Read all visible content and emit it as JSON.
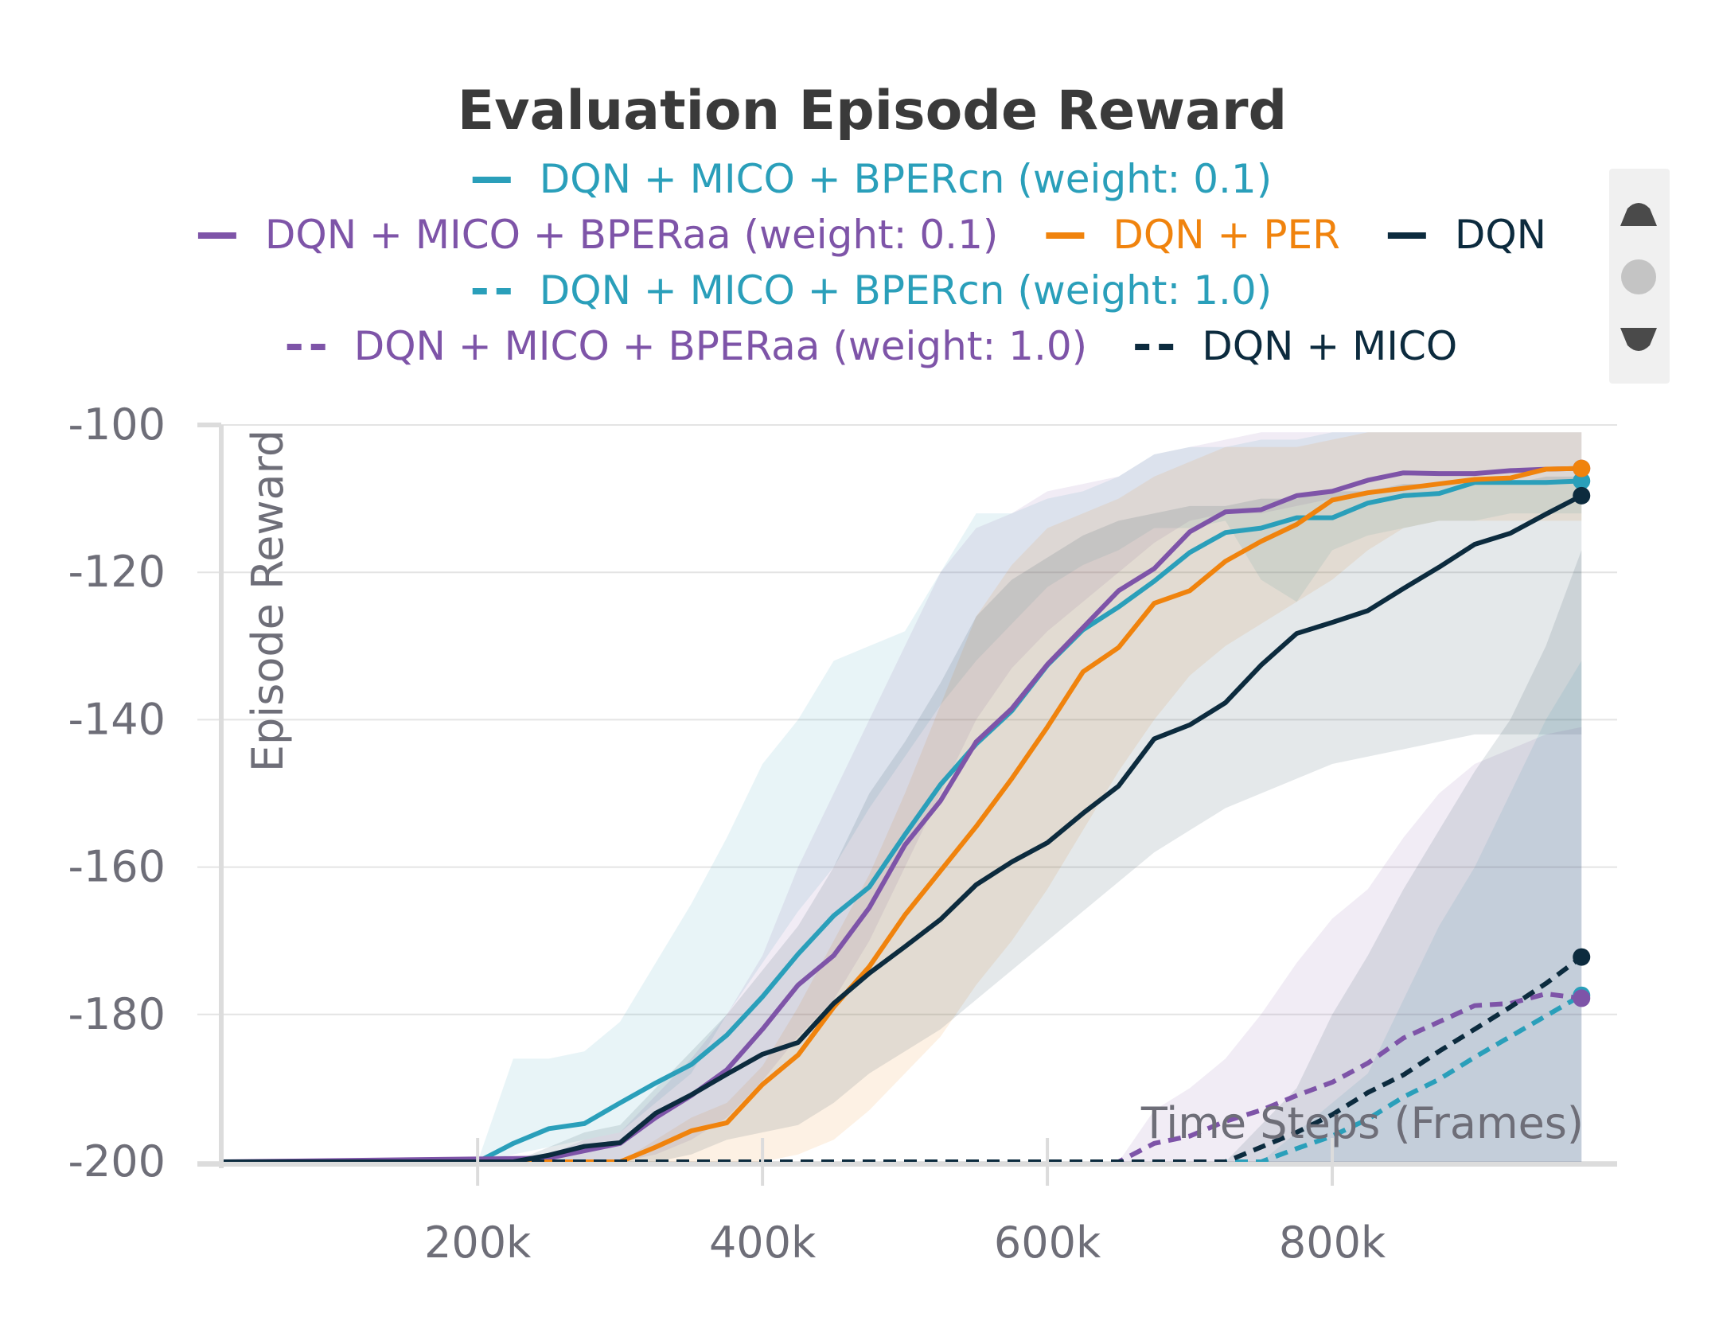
{
  "chart_data": {
    "type": "line",
    "title": "Evaluation Episode Reward",
    "xlabel": "Time Steps (Frames)",
    "ylabel": "Episode Reward",
    "xlim": [
      20000,
      1000000
    ],
    "ylim": [
      -200,
      -100
    ],
    "xticks": [
      200000,
      400000,
      600000,
      800000
    ],
    "xtick_labels": [
      "200k",
      "400k",
      "600k",
      "800k"
    ],
    "yticks": [
      -100,
      -120,
      -140,
      -160,
      -180,
      -200
    ],
    "ytick_labels": [
      "-100",
      "-120",
      "-140",
      "-160",
      "-180",
      "-200"
    ],
    "grid": true,
    "legend_position": "top-center",
    "series": [
      {
        "name": "DQN + MICO + BPERcn (weight: 0.1)",
        "color": "#2a9fba",
        "dash": "solid",
        "x": [
          20000,
          200000,
          225000,
          250000,
          275000,
          300000,
          325000,
          350000,
          375000,
          400000,
          425000,
          450000,
          475000,
          500000,
          525000,
          550000,
          575000,
          600000,
          625000,
          650000,
          675000,
          700000,
          725000,
          750000,
          775000,
          800000,
          825000,
          850000,
          875000,
          900000,
          925000,
          950000,
          975000
        ],
        "y": [
          -200,
          -200,
          -197.5,
          -195.5,
          -194.8,
          -192,
          -189.3,
          -186.8,
          -182.8,
          -177.6,
          -171.8,
          -166.6,
          -162.7,
          -155.6,
          -148.8,
          -143.3,
          -138.8,
          -132.6,
          -127.8,
          -124.7,
          -121.2,
          -117.3,
          -114.6,
          -114.0,
          -112.6,
          -112.6,
          -110.6,
          -109.6,
          -109.3,
          -107.8,
          -107.8,
          -107.8,
          -107.6
        ],
        "band": [
          [
            -200,
            -200
          ],
          [
            -200,
            -200
          ],
          [
            -199,
            -186
          ],
          [
            -198,
            -186
          ],
          [
            -197,
            -185
          ],
          [
            -196,
            -181
          ],
          [
            -192,
            -173
          ],
          [
            -188,
            -165
          ],
          [
            -180,
            -156
          ],
          [
            -173,
            -146
          ],
          [
            -166,
            -140
          ],
          [
            -160,
            -132
          ],
          [
            -152,
            -130
          ],
          [
            -145,
            -128
          ],
          [
            -138,
            -120
          ],
          [
            -132,
            -112
          ],
          [
            -127,
            -112
          ],
          [
            -122,
            -110
          ],
          [
            -119,
            -109
          ],
          [
            -117,
            -107
          ],
          [
            -114,
            -104
          ],
          [
            -114,
            -103
          ],
          [
            -113,
            -103
          ],
          [
            -121,
            -102
          ],
          [
            -124,
            -102
          ],
          [
            -117,
            -101
          ],
          [
            -115,
            -101
          ],
          [
            -114,
            -101
          ],
          [
            -113,
            -101
          ],
          [
            -113,
            -101
          ],
          [
            -112,
            -101
          ],
          [
            -112,
            -101
          ],
          [
            -112,
            -101
          ]
        ]
      },
      {
        "name": "DQN + MICO + BPERaa (weight: 0.1)",
        "color": "#7e54a8",
        "dash": "solid",
        "x": [
          20000,
          250000,
          275000,
          300000,
          325000,
          350000,
          375000,
          400000,
          425000,
          450000,
          475000,
          500000,
          525000,
          550000,
          575000,
          600000,
          625000,
          650000,
          675000,
          700000,
          725000,
          750000,
          775000,
          800000,
          825000,
          850000,
          875000,
          900000,
          925000,
          950000,
          975000
        ],
        "y": [
          -200,
          -199.5,
          -198.5,
          -197.5,
          -194,
          -191,
          -187.5,
          -182,
          -176,
          -172,
          -165.5,
          -157,
          -151,
          -143,
          -138.5,
          -132.5,
          -127.5,
          -122.5,
          -119.5,
          -114.5,
          -111.8,
          -111.5,
          -109.6,
          -109,
          -107.5,
          -106.5,
          -106.6,
          -106.6,
          -106.2,
          -106,
          -105.9
        ],
        "band": [
          [
            -200,
            -200
          ],
          [
            -200,
            -199
          ],
          [
            -200,
            -197
          ],
          [
            -200,
            -196
          ],
          [
            -199,
            -191
          ],
          [
            -197,
            -186
          ],
          [
            -194,
            -180
          ],
          [
            -189,
            -172
          ],
          [
            -183,
            -160
          ],
          [
            -178,
            -150
          ],
          [
            -170,
            -140
          ],
          [
            -160,
            -130
          ],
          [
            -150,
            -120
          ],
          [
            -140,
            -114
          ],
          [
            -133,
            -112
          ],
          [
            -128,
            -109
          ],
          [
            -124,
            -108
          ],
          [
            -120,
            -107
          ],
          [
            -116,
            -104
          ],
          [
            -113,
            -103
          ],
          [
            -112,
            -102
          ],
          [
            -112,
            -101
          ],
          [
            -111,
            -101
          ],
          [
            -110,
            -101
          ],
          [
            -109,
            -101
          ],
          [
            -109,
            -101
          ],
          [
            -108,
            -101
          ],
          [
            -108,
            -101
          ],
          [
            -108,
            -101
          ],
          [
            -108,
            -101
          ],
          [
            -108,
            -101
          ]
        ]
      },
      {
        "name": "DQN + PER",
        "color": "#f0830d",
        "dash": "solid",
        "x": [
          20000,
          300000,
          325000,
          350000,
          375000,
          400000,
          425000,
          450000,
          475000,
          500000,
          525000,
          550000,
          575000,
          600000,
          625000,
          650000,
          675000,
          700000,
          725000,
          750000,
          775000,
          800000,
          825000,
          850000,
          875000,
          900000,
          925000,
          950000,
          975000
        ],
        "y": [
          -200,
          -200,
          -198,
          -195.8,
          -194.7,
          -189.5,
          -185.5,
          -179,
          -173.5,
          -166.5,
          -160.5,
          -154.5,
          -148,
          -141,
          -133.5,
          -130.2,
          -124.2,
          -122.5,
          -118.5,
          -115.8,
          -113.5,
          -110.2,
          -109.2,
          -108.6,
          -108,
          -107.4,
          -107.2,
          -106,
          -105.9
        ],
        "band": [
          [
            -200,
            -200
          ],
          [
            -200,
            -200
          ],
          [
            -200,
            -197
          ],
          [
            -200,
            -194
          ],
          [
            -200,
            -192
          ],
          [
            -200,
            -187
          ],
          [
            -199,
            -179
          ],
          [
            -197,
            -170
          ],
          [
            -193,
            -161
          ],
          [
            -188,
            -150
          ],
          [
            -183,
            -138
          ],
          [
            -176,
            -126
          ],
          [
            -170,
            -119
          ],
          [
            -163,
            -114
          ],
          [
            -155,
            -112
          ],
          [
            -147,
            -110
          ],
          [
            -140,
            -107
          ],
          [
            -134,
            -105
          ],
          [
            -130,
            -103
          ],
          [
            -127,
            -103
          ],
          [
            -124,
            -103
          ],
          [
            -121,
            -102
          ],
          [
            -117,
            -101
          ],
          [
            -114,
            -101
          ],
          [
            -113,
            -101
          ],
          [
            -113,
            -101
          ],
          [
            -113,
            -101
          ],
          [
            -113,
            -101
          ],
          [
            -113,
            -101
          ]
        ]
      },
      {
        "name": "DQN",
        "color": "#0c2b3e",
        "dash": "solid",
        "x": [
          20000,
          225000,
          250000,
          275000,
          300000,
          325000,
          350000,
          375000,
          400000,
          425000,
          450000,
          475000,
          500000,
          525000,
          550000,
          575000,
          600000,
          625000,
          650000,
          675000,
          700000,
          725000,
          750000,
          775000,
          800000,
          825000,
          850000,
          875000,
          900000,
          925000,
          950000,
          975000
        ],
        "y": [
          -200,
          -200,
          -199.1,
          -197.9,
          -197.4,
          -193.4,
          -190.9,
          -188.1,
          -185.4,
          -183.8,
          -178.5,
          -174.4,
          -170.8,
          -167.1,
          -162.4,
          -159.3,
          -156.7,
          -152.7,
          -149,
          -142.6,
          -140.7,
          -137.7,
          -132.6,
          -128.3,
          -126.8,
          -125.2,
          -122.2,
          -119.3,
          -116.2,
          -114.7,
          -112.1,
          -109.6
        ],
        "band": [
          [
            -200,
            -200
          ],
          [
            -200,
            -200
          ],
          [
            -200,
            -198
          ],
          [
            -200,
            -196
          ],
          [
            -200,
            -195
          ],
          [
            -200,
            -190
          ],
          [
            -199,
            -185
          ],
          [
            -197,
            -180
          ],
          [
            -196,
            -174
          ],
          [
            -195,
            -168
          ],
          [
            -192,
            -160
          ],
          [
            -188,
            -150
          ],
          [
            -185,
            -143
          ],
          [
            -182,
            -135
          ],
          [
            -178,
            -126
          ],
          [
            -174,
            -121
          ],
          [
            -170,
            -118
          ],
          [
            -166,
            -115
          ],
          [
            -162,
            -113
          ],
          [
            -158,
            -112
          ],
          [
            -155,
            -111
          ],
          [
            -152,
            -111
          ],
          [
            -150,
            -110
          ],
          [
            -148,
            -110
          ],
          [
            -146,
            -109
          ],
          [
            -145,
            -109
          ],
          [
            -144,
            -108
          ],
          [
            -143,
            -108
          ],
          [
            -142,
            -108
          ],
          [
            -142,
            -108
          ],
          [
            -142,
            -107
          ],
          [
            -142,
            -107
          ]
        ]
      },
      {
        "name": "DQN + MICO + BPERcn (weight: 1.0)",
        "color": "#2a9fba",
        "dash": "dashed",
        "x": [
          20000,
          750000,
          775000,
          800000,
          825000,
          850000,
          875000,
          900000,
          925000,
          950000,
          975000
        ],
        "y": [
          -200,
          -200,
          -198.2,
          -196.5,
          -194.2,
          -191.2,
          -188.8,
          -185.8,
          -183.0,
          -180.2,
          -177.4
        ],
        "band": [
          [
            -200,
            -200
          ],
          [
            -200,
            -200
          ],
          [
            -200,
            -196
          ],
          [
            -200,
            -192
          ],
          [
            -200,
            -188
          ],
          [
            -200,
            -178
          ],
          [
            -200,
            -168
          ],
          [
            -200,
            -160
          ],
          [
            -200,
            -150
          ],
          [
            -200,
            -140
          ],
          [
            -200,
            -132
          ]
        ]
      },
      {
        "name": "DQN + MICO + BPERaa (weight: 1.0)",
        "color": "#7e54a8",
        "dash": "dashed",
        "x": [
          20000,
          650000,
          675000,
          700000,
          725000,
          750000,
          775000,
          800000,
          825000,
          850000,
          875000,
          900000,
          925000,
          950000,
          975000
        ],
        "y": [
          -200,
          -200,
          -197.5,
          -196.5,
          -194.5,
          -193.0,
          -191.0,
          -189.2,
          -186.6,
          -183.2,
          -181.0,
          -178.8,
          -178.5,
          -177.2,
          -177.8
        ],
        "band": [
          [
            -200,
            -200
          ],
          [
            -200,
            -200
          ],
          [
            -200,
            -193
          ],
          [
            -200,
            -190
          ],
          [
            -200,
            -186
          ],
          [
            -200,
            -180
          ],
          [
            -200,
            -173
          ],
          [
            -200,
            -167
          ],
          [
            -200,
            -163
          ],
          [
            -200,
            -156
          ],
          [
            -200,
            -150
          ],
          [
            -200,
            -146
          ],
          [
            -200,
            -144
          ],
          [
            -200,
            -142
          ],
          [
            -200,
            -141
          ]
        ]
      },
      {
        "name": "DQN + MICO",
        "color": "#0c2b3e",
        "dash": "dashed",
        "x": [
          20000,
          725000,
          750000,
          775000,
          800000,
          825000,
          850000,
          875000,
          900000,
          925000,
          950000,
          975000
        ],
        "y": [
          -200,
          -200,
          -198,
          -196,
          -193.6,
          -190.6,
          -188.2,
          -185,
          -182,
          -179,
          -175.8,
          -172.2
        ],
        "band": [
          [
            -200,
            -200
          ],
          [
            -200,
            -200
          ],
          [
            -200,
            -195
          ],
          [
            -200,
            -190
          ],
          [
            -200,
            -180
          ],
          [
            -200,
            -172
          ],
          [
            -200,
            -163
          ],
          [
            -200,
            -155
          ],
          [
            -200,
            -147
          ],
          [
            -200,
            -140
          ],
          [
            -200,
            -130
          ],
          [
            -200,
            -117
          ]
        ]
      }
    ]
  },
  "controls": {
    "up_icon": "triangle-up-icon",
    "dot_icon": "circle-icon",
    "down_icon": "triangle-down-icon"
  }
}
